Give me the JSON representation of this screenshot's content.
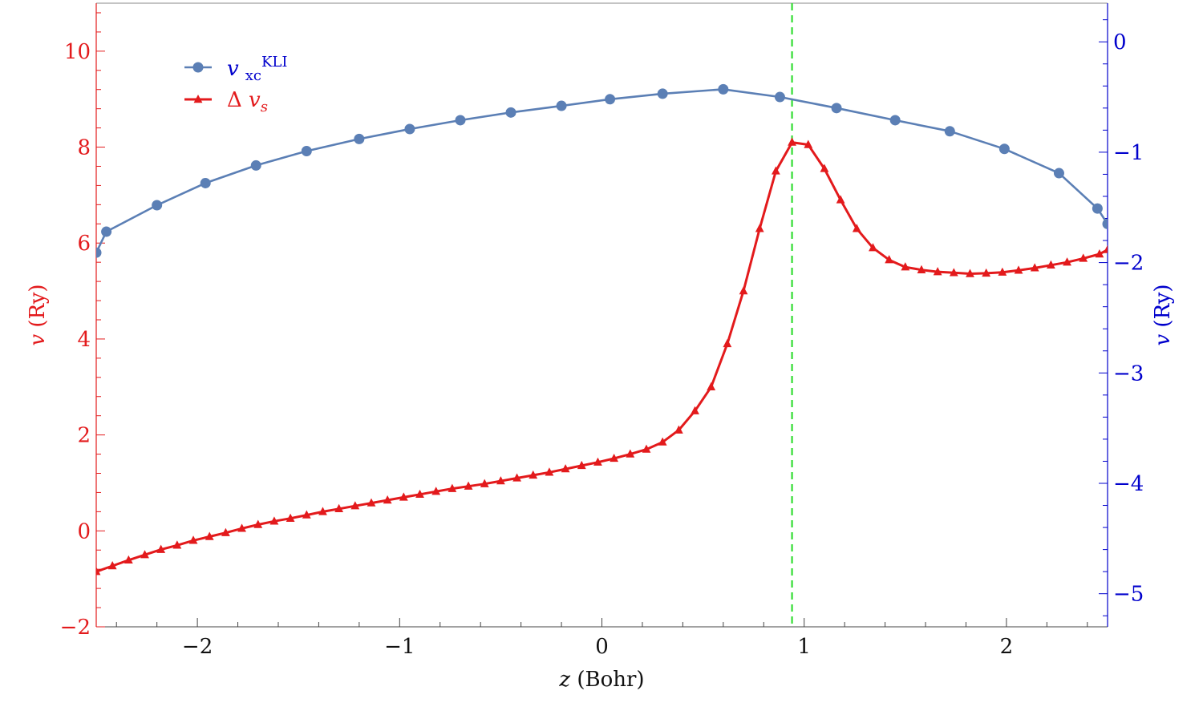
{
  "chart_data": {
    "type": "line",
    "x_axis": {
      "label_var": "z",
      "label_unit": " (Bohr)",
      "range": [
        -2.5,
        2.5
      ],
      "ticks": [
        -2,
        -1,
        0,
        1,
        2
      ],
      "tick_labels": [
        "−2",
        "−1",
        "0",
        "1",
        "2"
      ],
      "minor_step": 0.2
    },
    "y_left": {
      "label_var": "v",
      "label_unit": " (Ry)",
      "color": "#e31a1c",
      "range": [
        -2,
        11
      ],
      "ticks": [
        -2,
        0,
        2,
        4,
        6,
        8,
        10
      ],
      "tick_labels": [
        "−2",
        "0",
        "2",
        "4",
        "6",
        "8",
        "10"
      ],
      "minor_step": 0.4
    },
    "y_right": {
      "label_var": "v",
      "label_unit": " (Ry)",
      "color": "#0000cc",
      "range": [
        -5.3,
        0.35
      ],
      "ticks": [
        0,
        -1,
        -2,
        -3,
        -4,
        -5
      ],
      "tick_labels": [
        "0",
        "−1",
        "−2",
        "−3",
        "−4",
        "−5"
      ],
      "minor_step": 0.2
    },
    "reference_line": {
      "x": 0.94,
      "color": "#33dd33",
      "style": "dashed"
    },
    "legend": {
      "placement": "top-left",
      "entries": [
        {
          "symbol": "v",
          "sub": "xc",
          "sup": "KLI",
          "color": "#0000cc"
        },
        {
          "symbol": "Δ v",
          "sub": "s",
          "sup": "",
          "color": "#e31a1c"
        }
      ]
    },
    "series": [
      {
        "axis": "right",
        "color": "#5b7fb5",
        "marker": "circle",
        "x": [
          -2.5,
          -2.45,
          -2.2,
          -1.96,
          -1.71,
          -1.46,
          -1.2,
          -0.95,
          -0.7,
          -0.45,
          -0.2,
          0.04,
          0.3,
          0.6,
          0.88,
          1.16,
          1.45,
          1.72,
          1.99,
          2.26,
          2.45,
          2.5
        ],
        "y": [
          -1.91,
          -1.72,
          -1.48,
          -1.28,
          -1.12,
          -0.99,
          -0.88,
          -0.79,
          -0.71,
          -0.64,
          -0.58,
          -0.52,
          -0.47,
          -0.43,
          -0.5,
          -0.6,
          -0.71,
          -0.81,
          -0.97,
          -1.19,
          -1.51,
          -1.65
        ]
      },
      {
        "axis": "left",
        "color": "#e31a1c",
        "marker": "triangle",
        "x": [
          -2.5,
          -2.42,
          -2.34,
          -2.26,
          -2.18,
          -2.1,
          -2.02,
          -1.94,
          -1.86,
          -1.78,
          -1.7,
          -1.62,
          -1.54,
          -1.46,
          -1.38,
          -1.3,
          -1.22,
          -1.14,
          -1.06,
          -0.98,
          -0.9,
          -0.82,
          -0.74,
          -0.66,
          -0.58,
          -0.5,
          -0.42,
          -0.34,
          -0.26,
          -0.18,
          -0.1,
          -0.02,
          0.06,
          0.14,
          0.22,
          0.3,
          0.38,
          0.46,
          0.54,
          0.62,
          0.7,
          0.78,
          0.86,
          0.94,
          1.02,
          1.1,
          1.18,
          1.26,
          1.34,
          1.42,
          1.5,
          1.58,
          1.66,
          1.74,
          1.82,
          1.9,
          1.98,
          2.06,
          2.14,
          2.22,
          2.3,
          2.38,
          2.46,
          2.5
        ],
        "y": [
          -0.85,
          -0.73,
          -0.61,
          -0.5,
          -0.39,
          -0.3,
          -0.2,
          -0.12,
          -0.04,
          0.05,
          0.13,
          0.2,
          0.26,
          0.33,
          0.4,
          0.46,
          0.52,
          0.58,
          0.64,
          0.7,
          0.76,
          0.82,
          0.88,
          0.93,
          0.98,
          1.04,
          1.1,
          1.16,
          1.22,
          1.29,
          1.36,
          1.43,
          1.51,
          1.6,
          1.7,
          1.85,
          2.1,
          2.5,
          3.0,
          3.9,
          5.0,
          6.3,
          7.5,
          8.1,
          8.05,
          7.55,
          6.9,
          6.3,
          5.9,
          5.65,
          5.5,
          5.44,
          5.4,
          5.38,
          5.36,
          5.37,
          5.39,
          5.43,
          5.48,
          5.54,
          5.6,
          5.68,
          5.77,
          5.86
        ]
      }
    ]
  }
}
